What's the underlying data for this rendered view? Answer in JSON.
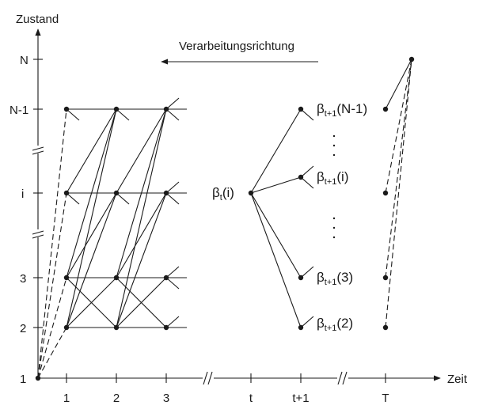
{
  "y_axis": {
    "title": "Zustand",
    "ticks": [
      "N",
      "N-1",
      "i",
      "3",
      "2",
      "1"
    ]
  },
  "x_axis": {
    "title": "Zeit",
    "ticks": [
      "1",
      "2",
      "3",
      "t",
      "t+1",
      "T"
    ]
  },
  "direction_label": "Verarbeitungsrichtung",
  "beta_t": {
    "symbol": "β",
    "sub": "t",
    "arg": "(i)"
  },
  "beta_next": [
    {
      "symbol": "β",
      "sub": "t+1",
      "arg": "(N-1)"
    },
    {
      "symbol": "β",
      "sub": "t+1",
      "arg": "(i)"
    },
    {
      "symbol": "β",
      "sub": "t+1",
      "arg": "(3)"
    },
    {
      "symbol": "β",
      "sub": "t+1",
      "arg": "(2)"
    }
  ]
}
